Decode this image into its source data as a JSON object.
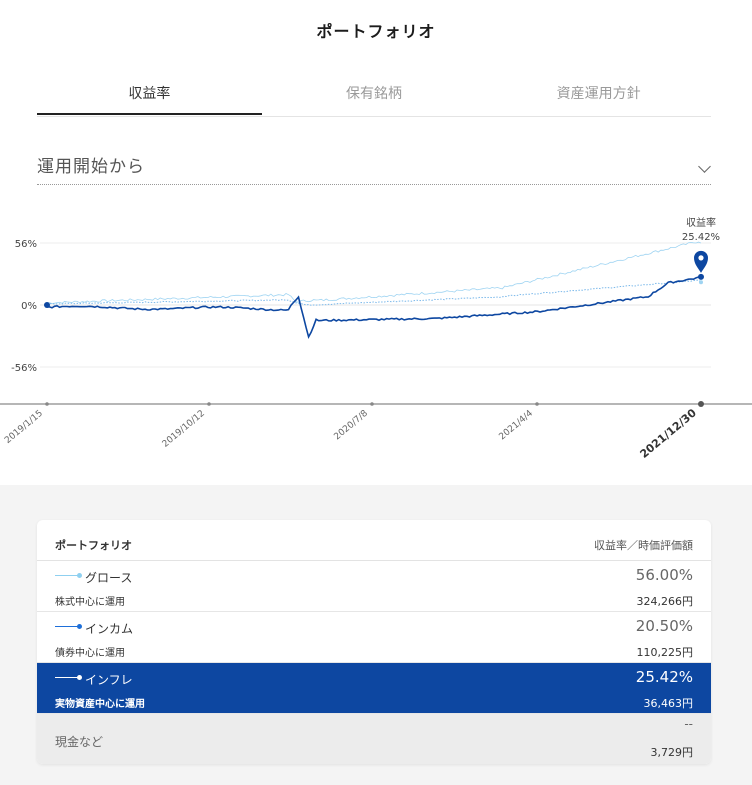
{
  "title": "ポートフォリオ",
  "tabs": [
    {
      "label": "収益率"
    },
    {
      "label": "保有銘柄"
    },
    {
      "label": "資産運用方針"
    }
  ],
  "period": {
    "label": "運用開始から"
  },
  "chart_data": {
    "type": "line",
    "y_ticks": [
      "56%",
      "0%",
      "-56%"
    ],
    "y_tick_values": [
      56,
      0,
      -56
    ],
    "ylim": [
      -90,
      90
    ],
    "x_tick_labels": [
      "2019/1/15",
      "2019/10/12",
      "2020/7/8",
      "2021/4/4",
      "2021/12/30"
    ],
    "annotation": {
      "label": "収益率",
      "value": "25.42%"
    },
    "series": [
      {
        "name": "グロース",
        "color": "#9fd4f2",
        "style": "solid",
        "end_value": 56.0
      },
      {
        "name": "インカム",
        "color": "#7ab8ea",
        "style": "dotted",
        "end_value": 20.5
      },
      {
        "name": "インフレ",
        "color": "#0d47a1",
        "style": "solid",
        "end_value": 25.42
      }
    ]
  },
  "card": {
    "header_left": "ポートフォリオ",
    "header_right": "収益率／時価評価額",
    "rows": [
      {
        "name": "グロース",
        "sub": "株式中心に運用",
        "pct": "56.00%",
        "amount": "324,266円",
        "color": "#8fd0f0"
      },
      {
        "name": "インカム",
        "sub": "債券中心に運用",
        "pct": "20.50%",
        "amount": "110,225円",
        "color": "#1e6fd9"
      },
      {
        "name": "インフレ",
        "sub": "実物資産中心に運用",
        "pct": "25.42%",
        "amount": "36,463円",
        "color": "#ffffff"
      }
    ],
    "cash": {
      "name": "現金など",
      "pct": "--",
      "amount": "3,729円"
    }
  }
}
